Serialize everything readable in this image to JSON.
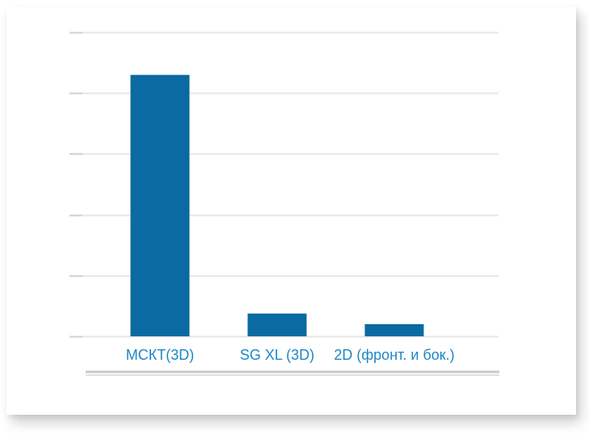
{
  "chart_data": {
    "type": "bar",
    "categories": [
      "МСКТ(3D)",
      "SG XL (3D)",
      "2D (фронт. и бок.)"
    ],
    "values": [
      86,
      7.5,
      4
    ],
    "title": "",
    "xlabel": "",
    "ylabel": "",
    "ylim": [
      0,
      100
    ],
    "grid": true,
    "y_tick_labels_visible": false,
    "bar_color": "#0a6aa1",
    "label_color": "#1d87c6",
    "grid_color": "#e6e6e6"
  }
}
